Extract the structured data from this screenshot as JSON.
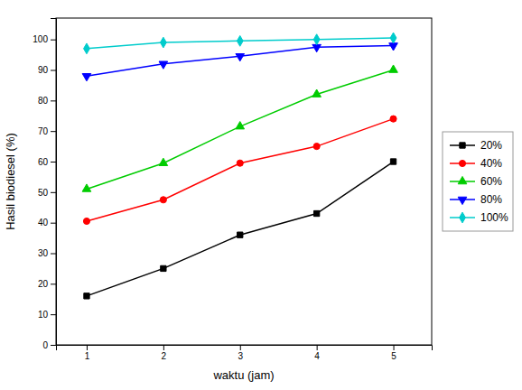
{
  "chart_data": {
    "type": "line",
    "x": [
      1,
      2,
      3,
      4,
      5
    ],
    "series": [
      {
        "name": "20%",
        "values": [
          16,
          25,
          36,
          43,
          60
        ],
        "color": "#000000",
        "marker": "square",
        "line_style": "solid"
      },
      {
        "name": "40%",
        "values": [
          40.5,
          47.5,
          59.5,
          65,
          74
        ],
        "color": "#ff0000",
        "marker": "circle",
        "line_style": "solid"
      },
      {
        "name": "60%",
        "values": [
          51,
          59.5,
          71.5,
          82,
          90
        ],
        "color": "#00cc00",
        "marker": "triangle-up",
        "line_style": "solid"
      },
      {
        "name": "80%",
        "values": [
          88,
          92,
          94.5,
          97.5,
          98
        ],
        "color": "#0000ff",
        "marker": "triangle-down",
        "line_style": "solid"
      },
      {
        "name": "100%",
        "values": [
          97,
          99,
          99.5,
          100,
          100.5
        ],
        "color": "#00cccc",
        "marker": "diamond",
        "line_style": "solid"
      }
    ],
    "xlabel": "waktu (jam)",
    "ylabel": "Hasil biodiesel (%)",
    "xlim": [
      0.6,
      5.5
    ],
    "ylim": [
      0,
      107
    ],
    "xticks": [
      1,
      2,
      3,
      4,
      5
    ],
    "yticks": [
      0,
      10,
      20,
      30,
      40,
      50,
      60,
      70,
      80,
      90,
      100
    ],
    "grid": false,
    "legend": "right"
  }
}
